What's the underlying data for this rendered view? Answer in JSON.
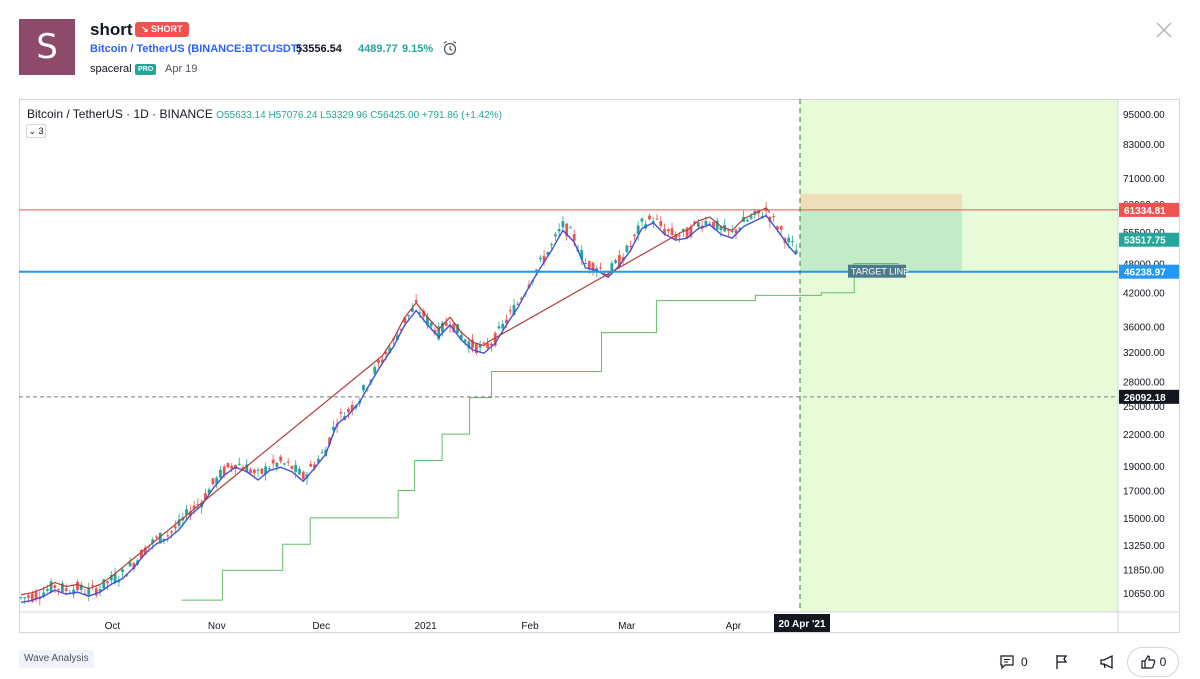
{
  "header": {
    "avatar_letter": "S",
    "title": "short",
    "badge": "↘ SHORT",
    "symbol": "Bitcoin / TetherUS (BINANCE:BTCUSDT)",
    "price": "53556.54",
    "change": "4489.77",
    "change_pct": "9.15%",
    "author": "spaceral",
    "author_badge": "PRO",
    "date": "Apr 19"
  },
  "chart": {
    "legend_title": "Bitcoin / TetherUS · 1D · BINANCE",
    "ohlc": "O55633.14 H57076.24 L53329.96 C56425.00 +791.86 (+1.42%)",
    "indicator_count": "3",
    "target_label": "TARGET LINE",
    "price_labels": {
      "red": "61334.81",
      "green": "53517.75",
      "blue": "46238.97",
      "dark": "26092.18"
    },
    "date_label": "20 Apr '21"
  },
  "chart_data": {
    "type": "candlestick",
    "y_scale": "log",
    "ylim": [
      9800,
      100000
    ],
    "y_ticks": [
      "95000.00",
      "83000.00",
      "71000.00",
      "63000.00",
      "55500.00",
      "48000.00",
      "42000.00",
      "36000.00",
      "32000.00",
      "28000.00",
      "25000.00",
      "22000.00",
      "19000.00",
      "17000.00",
      "15000.00",
      "13250.00",
      "11850.00",
      "10650.00"
    ],
    "x_ticks": [
      "Oct",
      "Nov",
      "Dec",
      "2021",
      "Feb",
      "Mar",
      "Apr"
    ],
    "price_path": [
      10400,
      10500,
      10700,
      11000,
      10800,
      10900,
      10700,
      10900,
      11300,
      11600,
      12200,
      13000,
      13600,
      13900,
      14500,
      15500,
      16200,
      17500,
      18600,
      19300,
      18900,
      18200,
      19000,
      19300,
      18900,
      18100,
      19200,
      20500,
      23500,
      24500,
      26000,
      28500,
      31000,
      33500,
      37000,
      39500,
      37000,
      35000,
      37000,
      34500,
      33000,
      32500,
      34000,
      37000,
      40000,
      44000,
      48000,
      52000,
      57000,
      54000,
      48000,
      47500,
      46000,
      48500,
      52000,
      57500,
      59000,
      56000,
      54500,
      55000,
      57500,
      58500,
      56000,
      55000,
      58000,
      59500,
      61000,
      57000,
      53000,
      50000
    ],
    "stop_levels": [
      {
        "x": [
          0.148,
          0.185
        ],
        "y": 10300
      },
      {
        "x": [
          0.185,
          0.24
        ],
        "y": 11800
      },
      {
        "x": [
          0.24,
          0.265
        ],
        "y": 13300
      },
      {
        "x": [
          0.265,
          0.345
        ],
        "y": 15000
      },
      {
        "x": [
          0.345,
          0.36
        ],
        "y": 17000
      },
      {
        "x": [
          0.36,
          0.385
        ],
        "y": 19500
      },
      {
        "x": [
          0.385,
          0.41
        ],
        "y": 22000
      },
      {
        "x": [
          0.41,
          0.43
        ],
        "y": 26000
      },
      {
        "x": [
          0.43,
          0.53
        ],
        "y": 29300
      },
      {
        "x": [
          0.53,
          0.58
        ],
        "y": 35000
      },
      {
        "x": [
          0.58,
          0.67
        ],
        "y": 40500
      },
      {
        "x": [
          0.67,
          0.73
        ],
        "y": 41500
      },
      {
        "x": [
          0.73,
          0.76
        ],
        "y": 42000
      },
      {
        "x": [
          0.76,
          0.8
        ],
        "y": 48000
      }
    ],
    "lines": {
      "red": 61334.81,
      "blue": 46238.97,
      "dark_dashed": 26092.18
    },
    "position_box": {
      "entry": 61334.81,
      "stop": 66000,
      "target": 46238.97
    },
    "colors": {
      "up": "#26a69a",
      "down": "#ef5350",
      "ma": "#4051d8",
      "stop": "#66bb6a",
      "red_line": "#ef5350",
      "blue_line": "#2196f3",
      "future_bg": "#e8fbd9"
    }
  },
  "footer": {
    "tag": "Wave Analysis",
    "comments": "0",
    "likes": "0"
  }
}
